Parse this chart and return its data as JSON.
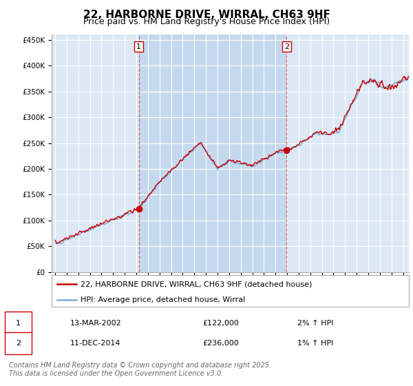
{
  "title": "22, HARBORNE DRIVE, WIRRAL, CH63 9HF",
  "subtitle": "Price paid vs. HM Land Registry's House Price Index (HPI)",
  "ylabel_ticks": [
    "£0",
    "£50K",
    "£100K",
    "£150K",
    "£200K",
    "£250K",
    "£300K",
    "£350K",
    "£400K",
    "£450K"
  ],
  "ytick_values": [
    0,
    50000,
    100000,
    150000,
    200000,
    250000,
    300000,
    350000,
    400000,
    450000
  ],
  "ylim": [
    0,
    460000
  ],
  "xlim_start": 1994.7,
  "xlim_end": 2025.5,
  "xticks": [
    1995,
    1996,
    1997,
    1998,
    1999,
    2000,
    2001,
    2002,
    2003,
    2004,
    2005,
    2006,
    2007,
    2008,
    2009,
    2010,
    2011,
    2012,
    2013,
    2014,
    2015,
    2016,
    2017,
    2018,
    2019,
    2020,
    2021,
    2022,
    2023,
    2024,
    2025
  ],
  "background_color": "#dce9f5",
  "highlight_color": "#c5d9ee",
  "grid_color": "#ffffff",
  "line_color_hpi": "#7aabdb",
  "line_color_price": "#cc0000",
  "vline_color": "#cc0000",
  "vline1_x": 2002.21,
  "vline2_x": 2014.96,
  "sale1_x": 2002.21,
  "sale1_y": 122000,
  "sale2_x": 2014.96,
  "sale2_y": 236000,
  "legend_label_price": "22, HARBORNE DRIVE, WIRRAL, CH63 9HF (detached house)",
  "legend_label_hpi": "HPI: Average price, detached house, Wirral",
  "table_rows": [
    {
      "num": "1",
      "date": "13-MAR-2002",
      "price": "£122,000",
      "hpi": "2% ↑ HPI"
    },
    {
      "num": "2",
      "date": "11-DEC-2014",
      "price": "£236,000",
      "hpi": "1% ↑ HPI"
    }
  ],
  "footnote": "Contains HM Land Registry data © Crown copyright and database right 2025.\nThis data is licensed under the Open Government Licence v3.0.",
  "title_fontsize": 11,
  "subtitle_fontsize": 9,
  "tick_fontsize": 7.5,
  "legend_fontsize": 8,
  "table_fontsize": 8,
  "footnote_fontsize": 7
}
